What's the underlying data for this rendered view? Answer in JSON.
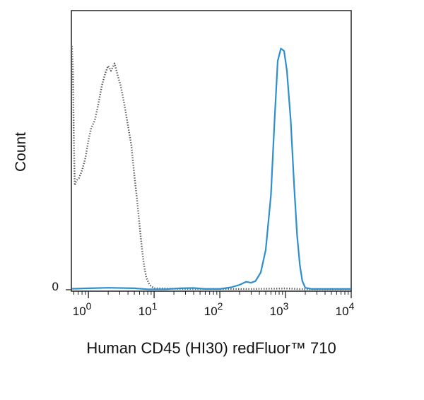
{
  "chart_data": {
    "type": "line",
    "xscale": "log",
    "xlim": [
      0.55,
      10000
    ],
    "ylim": [
      0,
      100
    ],
    "xlabel": "Human CD45 (HI30) redFluor™ 710",
    "ylabel": "Count",
    "y_ticks": [
      {
        "value": 0,
        "label": "0"
      }
    ],
    "x_ticks": [
      {
        "value": 1,
        "base": "10",
        "exp": "0"
      },
      {
        "value": 10,
        "base": "10",
        "exp": "1"
      },
      {
        "value": 100,
        "base": "10",
        "exp": "2"
      },
      {
        "value": 1000,
        "base": "10",
        "exp": "3"
      },
      {
        "value": 10000,
        "base": "10",
        "exp": "4"
      }
    ],
    "series": [
      {
        "style": "dotted",
        "color": "#5a5a5a",
        "points": [
          [
            0.56,
            98
          ],
          [
            0.58,
            90
          ],
          [
            0.6,
            60
          ],
          [
            0.62,
            42
          ],
          [
            0.66,
            44
          ],
          [
            0.72,
            45
          ],
          [
            0.8,
            48
          ],
          [
            0.9,
            53
          ],
          [
            1.0,
            60
          ],
          [
            1.1,
            65
          ],
          [
            1.25,
            68
          ],
          [
            1.4,
            74
          ],
          [
            1.6,
            82
          ],
          [
            1.8,
            87
          ],
          [
            2.0,
            90
          ],
          [
            2.2,
            88
          ],
          [
            2.5,
            91
          ],
          [
            2.8,
            86
          ],
          [
            3.1,
            82
          ],
          [
            3.5,
            75
          ],
          [
            4.0,
            66
          ],
          [
            4.5,
            58
          ],
          [
            5.0,
            46
          ],
          [
            5.5,
            36
          ],
          [
            6.0,
            26
          ],
          [
            6.5,
            17
          ],
          [
            7.0,
            10
          ],
          [
            7.6,
            5
          ],
          [
            8.5,
            2
          ],
          [
            10,
            0.6
          ],
          [
            30,
            0.3
          ],
          [
            100,
            0.3
          ],
          [
            300,
            0.3
          ],
          [
            1000,
            0.5
          ],
          [
            2000,
            0.2
          ],
          [
            10000,
            0.2
          ]
        ]
      },
      {
        "style": "solid",
        "color": "#2e8fd0",
        "points": [
          [
            0.56,
            0.4
          ],
          [
            1.0,
            0.6
          ],
          [
            2.0,
            0.8
          ],
          [
            5.0,
            0.6
          ],
          [
            8.0,
            0.2
          ],
          [
            15,
            0.2
          ],
          [
            25,
            0.6
          ],
          [
            40,
            0.7
          ],
          [
            60,
            0.3
          ],
          [
            100,
            0.3
          ],
          [
            150,
            1
          ],
          [
            200,
            2
          ],
          [
            250,
            3.2
          ],
          [
            300,
            2.8
          ],
          [
            350,
            3.5
          ],
          [
            420,
            7
          ],
          [
            500,
            16
          ],
          [
            600,
            38
          ],
          [
            680,
            68
          ],
          [
            760,
            92
          ],
          [
            850,
            97
          ],
          [
            950,
            96
          ],
          [
            1050,
            88
          ],
          [
            1200,
            68
          ],
          [
            1350,
            42
          ],
          [
            1500,
            22
          ],
          [
            1650,
            10
          ],
          [
            1800,
            3.5
          ],
          [
            2000,
            0.8
          ],
          [
            2500,
            0.3
          ],
          [
            10000,
            0.3
          ]
        ]
      }
    ]
  }
}
